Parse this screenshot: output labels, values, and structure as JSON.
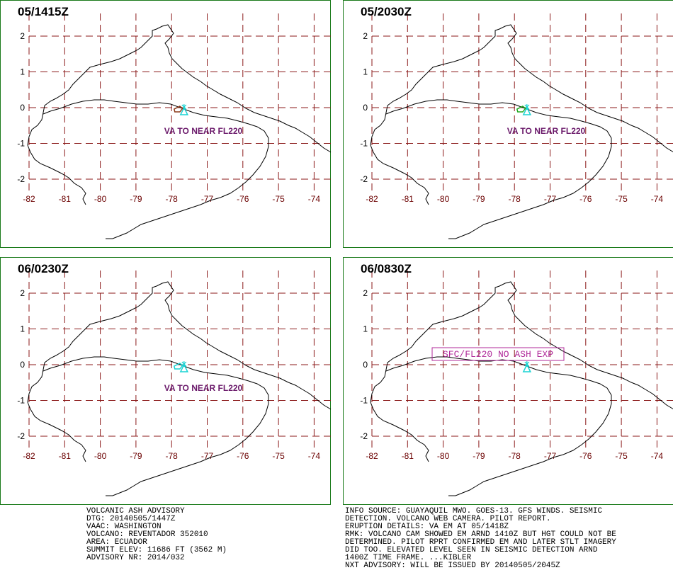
{
  "panels": [
    {
      "title": "05/1415Z",
      "label": "VA TO NEAR FL220",
      "boxed": false,
      "polygon": "brown"
    },
    {
      "title": "05/2030Z",
      "label": "VA TO NEAR FL220",
      "boxed": false,
      "polygon": "green"
    },
    {
      "title": "06/0230Z",
      "label": "VA TO NEAR FL220",
      "boxed": false,
      "polygon": "cyan"
    },
    {
      "title": "06/0830Z",
      "label": "SFC/FL220 NO ASH EXP",
      "boxed": true,
      "polygon": "none"
    }
  ],
  "axes": {
    "lat_ticks": [
      "2",
      "1",
      "0",
      "-1",
      "-2"
    ],
    "lon_ticks": [
      "-82",
      "-81",
      "-80",
      "-79",
      "-78",
      "-77",
      "-76",
      "-75",
      "-74"
    ]
  },
  "colors": {
    "border": "#1a7a1a",
    "grid": "#8b1a1a",
    "volcano": "#19d3d3",
    "va_text": "#6b1a6b",
    "box_text": "#b02a9a"
  },
  "advisory_left": [
    "VOLCANIC ASH ADVISORY",
    "DTG: 20140505/1447Z",
    "VAAC: WASHINGTON",
    "VOLCANO: REVENTADOR 352010",
    "AREA: ECUADOR",
    "SUMMIT ELEV: 11686 FT (3562 M)",
    "ADVISORY NR: 2014/032"
  ],
  "advisory_right": [
    "INFO SOURCE: GUAYAQUIL MWO. GOES-13. GFS WINDS. SEISMIC",
    "DETECTION. VOLCANO WEB CAMERA. PILOT REPORT.",
    "ERUPTION DETAILS: VA EM AT 05/1418Z",
    "RMK: VOLCANO CAM SHOWED EM ARND 1410Z BUT HGT COULD NOT BE",
    "DETERMINED. PILOT RPRT CONFIRMED EM AND LATER STLT IMAGERY",
    "DID TOO. ELEVATED LEVEL SEEN IN SEISMIC DETECTION ARND",
    "1400Z TIME FRAME. ...KIBLER",
    "NXT ADVISORY: WILL BE ISSUED BY 20140505/2045Z"
  ]
}
